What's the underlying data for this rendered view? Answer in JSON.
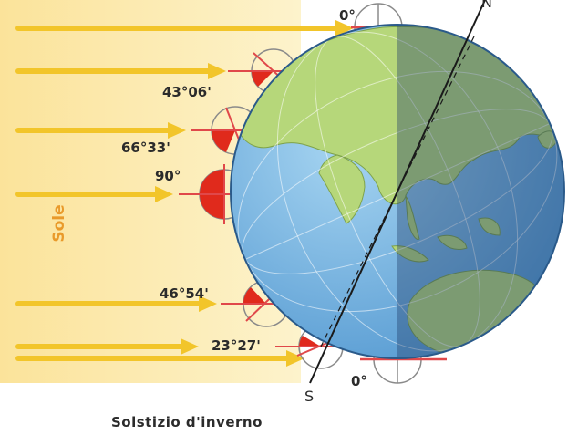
{
  "sun_label": "Sole",
  "caption": "Solstizio d'inverno",
  "poles": {
    "north": "N",
    "south": "S"
  },
  "angles": [
    "0°",
    "43°06'",
    "66°33'",
    "90°",
    "46°54'",
    "23°27'",
    "0°"
  ],
  "colors": {
    "sun_band": "#fbe9a6",
    "arrow": "#f2c52a",
    "ocean": "#7fbde6",
    "land": "#b6d77a",
    "night_tint": "#1c3a66",
    "angle_fill": "#e02a1c",
    "tangent": "#e0484a"
  }
}
